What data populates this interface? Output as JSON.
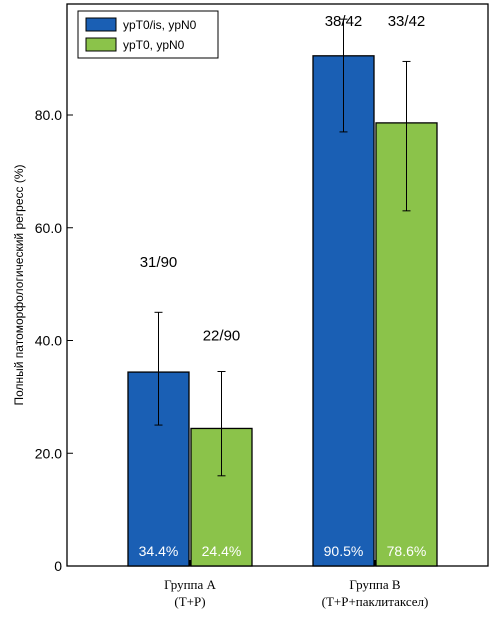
{
  "chart_data": {
    "type": "bar",
    "title": "",
    "xlabel": "",
    "ylabel": "Полный патоморфологический регресс (%)",
    "ylim": [
      0,
      100
    ],
    "yticks": [
      "0",
      "20.0",
      "40.0",
      "60.0",
      "80.0"
    ],
    "grid": false,
    "legend_position": "top-left",
    "categories": [
      {
        "line1": "Группа А",
        "line2": "(Т+Р)"
      },
      {
        "line1": "Группа В",
        "line2": "(Т+Р+паклитаксел)"
      }
    ],
    "series": [
      {
        "name": "ypT0/is, ypN0",
        "color": "#1a5fb4",
        "values": [
          34.4,
          90.5
        ],
        "error_low": [
          25,
          77
        ],
        "error_high": [
          45,
          97
        ],
        "fractions": [
          "31/90",
          "38/42"
        ],
        "percent_labels": [
          "34.4%",
          "90.5%"
        ]
      },
      {
        "name": "ypT0, ypN0",
        "color": "#8bc34a",
        "values": [
          24.4,
          78.6
        ],
        "error_low": [
          16,
          63
        ],
        "error_high": [
          34.5,
          89.5
        ],
        "fractions": [
          "22/90",
          "33/42"
        ],
        "percent_labels": [
          "24.4%",
          "78.6%"
        ]
      }
    ]
  }
}
